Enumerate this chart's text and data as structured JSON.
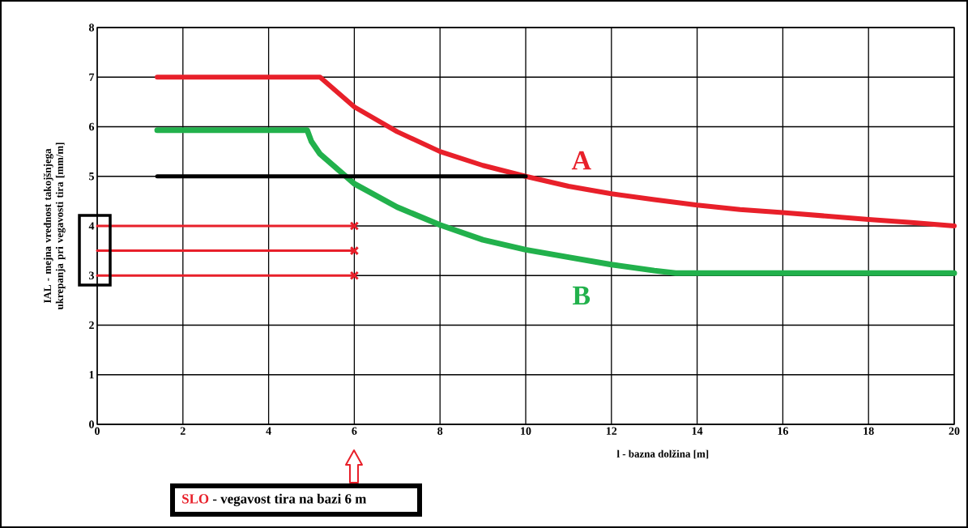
{
  "chart_data": {
    "type": "line",
    "xlabel": "l - bazna dolžina [m]",
    "ylabel": "IAL - mejna vrednost takojšnjega ukrepanja pri vegavosti tira [mm/m]",
    "annotations": [
      "SLO",
      "- vegavost tira na bazi 6 m"
    ],
    "xlim": [
      0,
      20
    ],
    "ylim": [
      0,
      8
    ],
    "xticks": [
      0,
      2,
      4,
      6,
      8,
      10,
      12,
      14,
      16,
      18,
      20
    ],
    "yticks": [
      0,
      1,
      2,
      3,
      4,
      5,
      6,
      7,
      8
    ],
    "grid": true,
    "line_style": "solid",
    "marker": "none",
    "series": [
      {
        "name": "A",
        "color": "#e8202a",
        "x": [
          1.4,
          5.2,
          6,
          7,
          8,
          9,
          10,
          11,
          12,
          13,
          14,
          15,
          16,
          17,
          18,
          19,
          20
        ],
        "values": [
          7,
          7,
          6.4,
          5.9,
          5.5,
          5.22,
          5.0,
          4.8,
          4.65,
          4.53,
          4.42,
          4.33,
          4.27,
          4.2,
          4.13,
          4.07,
          4.0
        ]
      },
      {
        "name": "B",
        "color": "#22b14c",
        "x": [
          1.4,
          4.9,
          5.0,
          5.2,
          6,
          7,
          8,
          9,
          10,
          11,
          12,
          13,
          13.5,
          20
        ],
        "values": [
          5.93,
          5.93,
          5.7,
          5.45,
          4.85,
          4.38,
          4.02,
          3.72,
          3.52,
          3.37,
          3.22,
          3.1,
          3.05,
          3.05
        ]
      },
      {
        "color": "#000000",
        "x": [
          1.4,
          10
        ],
        "values": [
          5,
          5
        ]
      },
      {
        "color": "#e8202a",
        "x": [
          0,
          6
        ],
        "values": [
          4,
          4
        ]
      },
      {
        "color": "#e8202a",
        "x": [
          0,
          6
        ],
        "values": [
          3.5,
          3.5
        ]
      },
      {
        "color": "#e8202a",
        "x": [
          0,
          6
        ],
        "values": [
          3,
          3
        ]
      },
      {
        "type": "scatter",
        "marker": "cross",
        "color": "#e8202a",
        "x": [
          6,
          6,
          6
        ],
        "values": [
          4,
          3.5,
          3
        ]
      }
    ]
  }
}
